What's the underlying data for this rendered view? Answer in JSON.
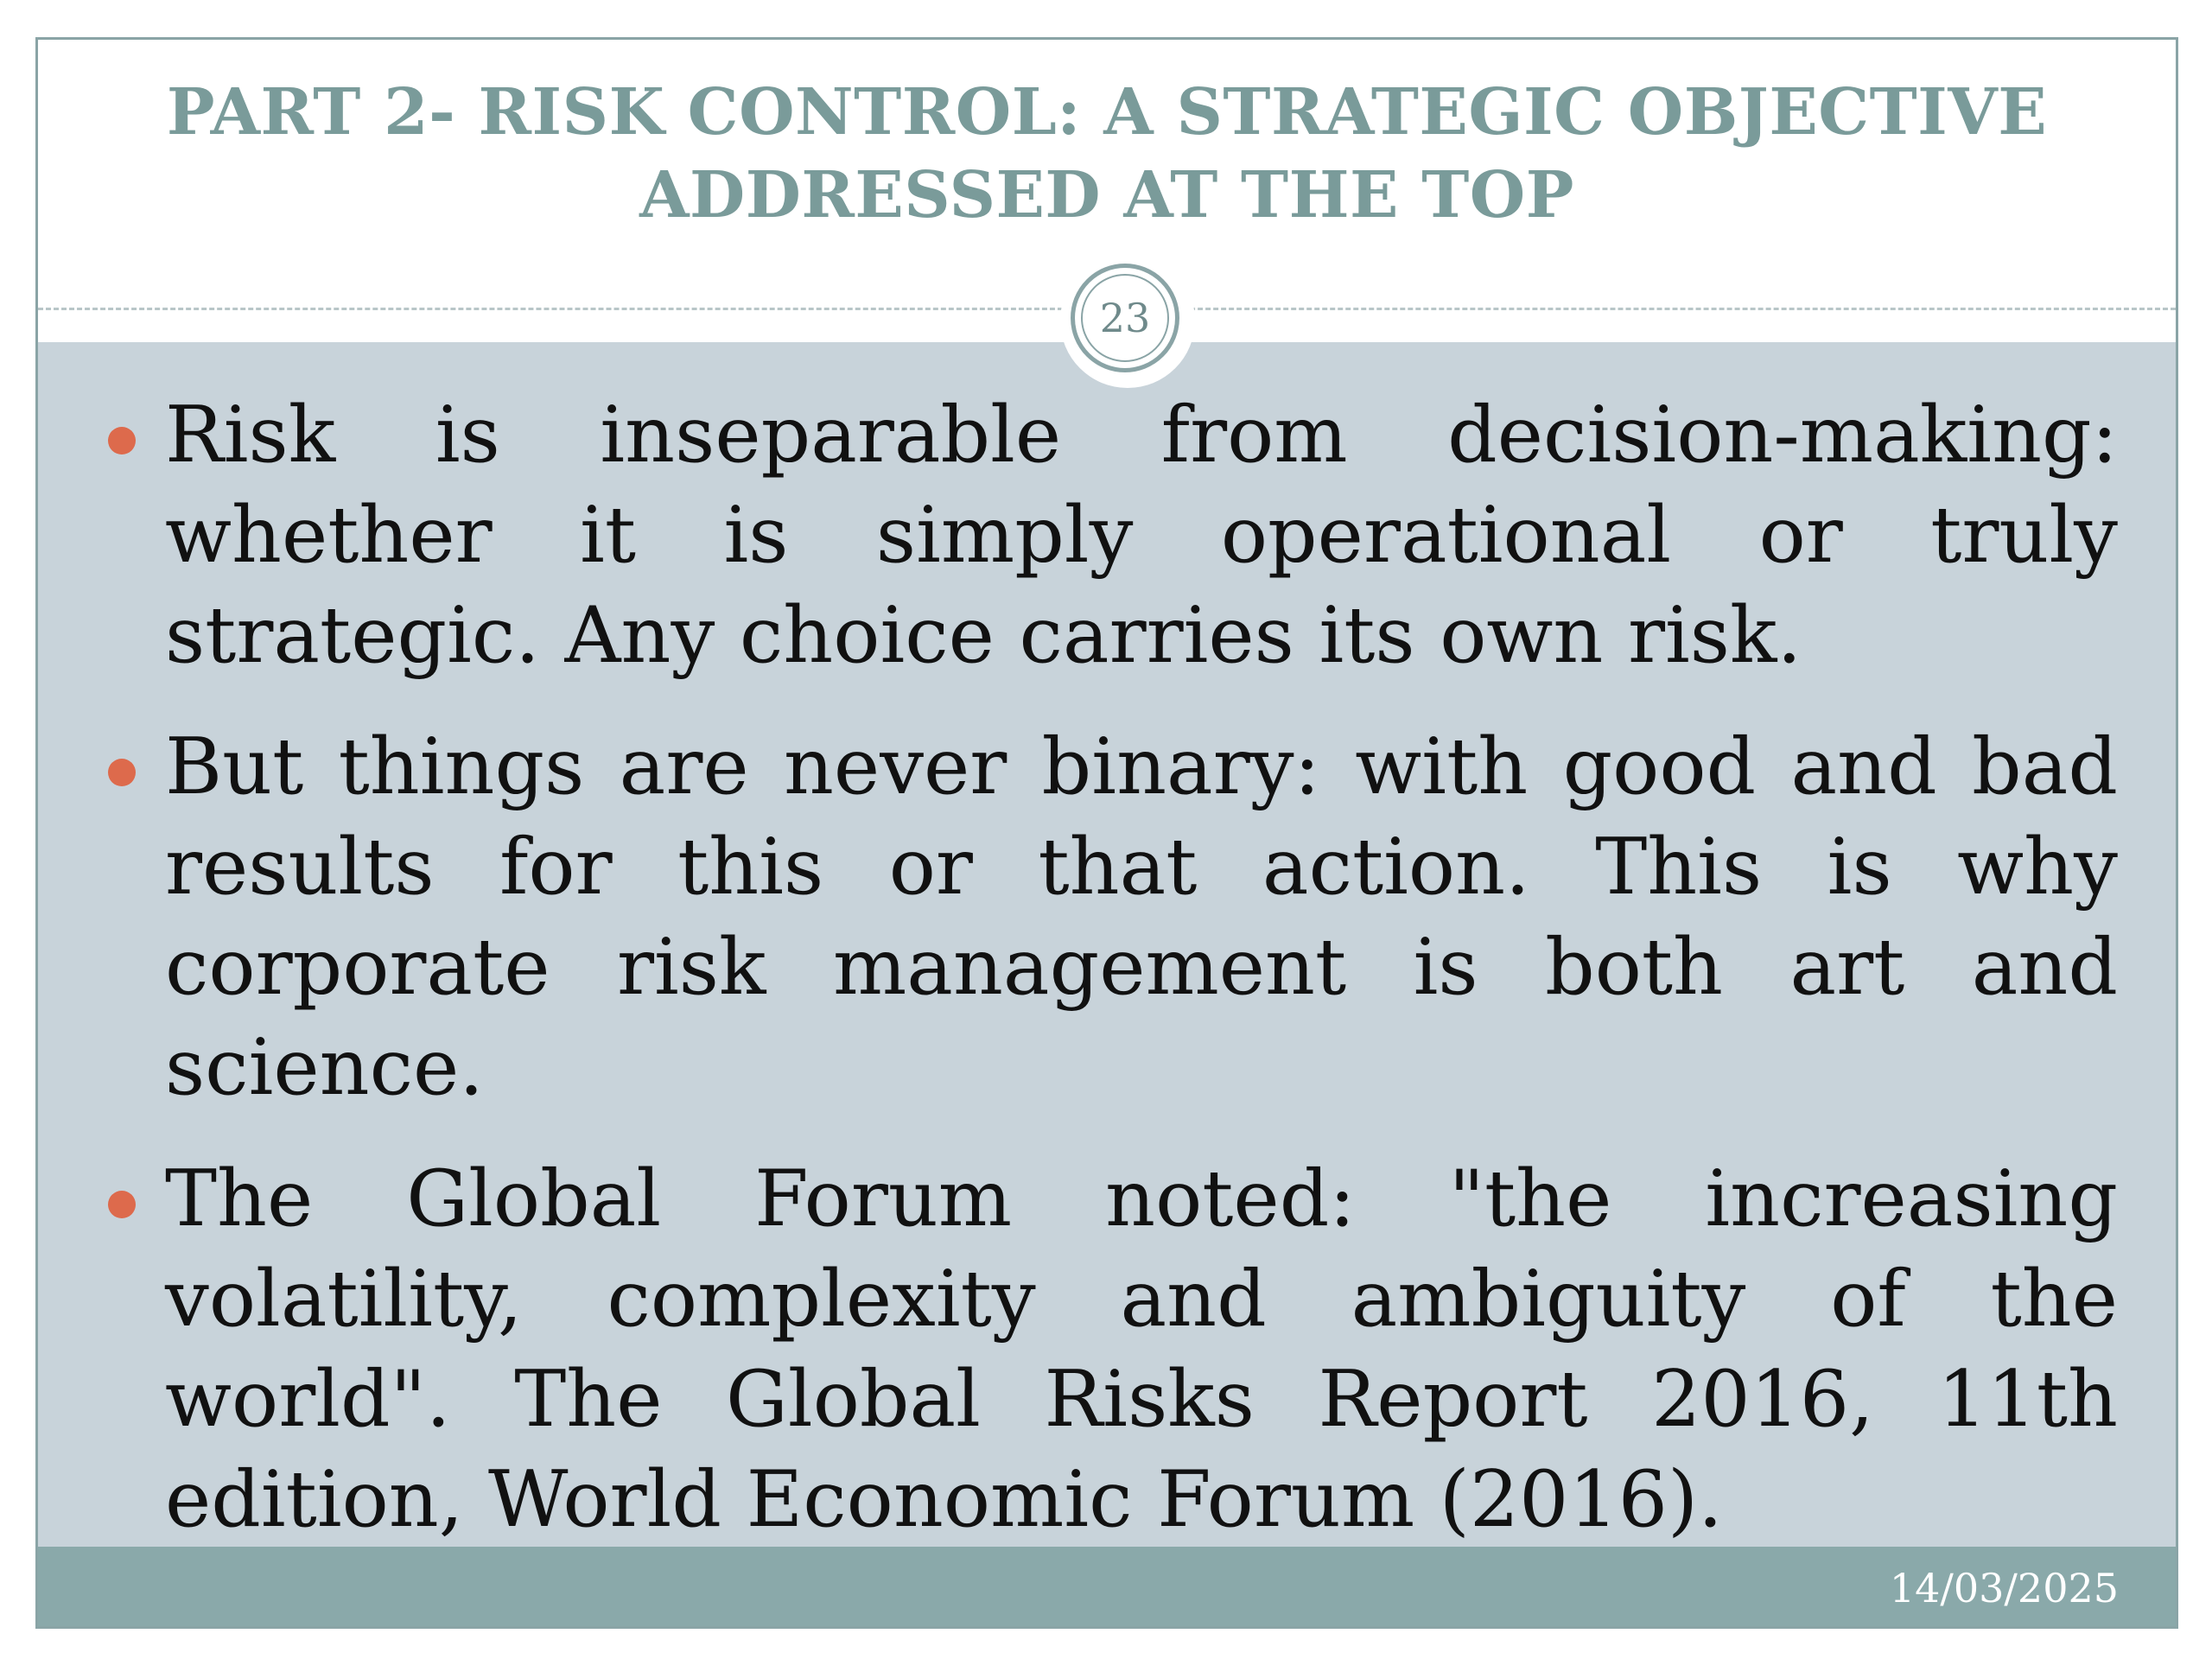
{
  "slide": {
    "title_line_1": "PART 2- RISK CONTROL: A STRATEGIC OBJECTIVE",
    "title_line_2": "ADDRESSED AT THE TOP",
    "page_number": "23",
    "bullets": [
      {
        "text": "Risk is inseparable from decision-making: whether it is simply operational or truly strategic. Any choice carries its own risk."
      },
      {
        "text": "But things are never binary: with good and bad results for this or that action. This is why corporate risk management is both art and science."
      },
      {
        "text": "The Global Forum noted: \"the increasing volatility, complexity and ambiguity of the world\". The Global Risks Report 2016, 11th edition, World Economic Forum (2016)."
      }
    ],
    "footer_date": "14/03/2025"
  },
  "colors": {
    "title": "#7a9b9a",
    "content_background": "#c8d3da",
    "bullet_marker": "#dd6a4c",
    "footer_bar": "#8aa9aa",
    "frame_border": "#8aa4a6"
  }
}
